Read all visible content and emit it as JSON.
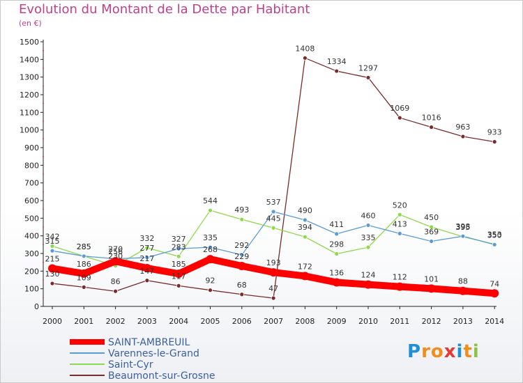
{
  "header": {
    "title": "Evolution du Montant de la Dette par Habitant",
    "subtitle": "(en €)"
  },
  "logo": {
    "text": "Proxiti"
  },
  "chart_data": {
    "type": "line",
    "title": "Evolution du Montant de la Dette par Habitant",
    "subtitle": "(en €)",
    "x": [
      "2000",
      "2001",
      "2002",
      "2003",
      "2004",
      "2005",
      "2006",
      "2007",
      "2008",
      "2009",
      "2010",
      "2011",
      "2012",
      "2013",
      "2014"
    ],
    "y_ticks": [
      0,
      100,
      200,
      300,
      400,
      500,
      600,
      700,
      800,
      900,
      1000,
      1100,
      1200,
      1300,
      1400,
      1500
    ],
    "ylim": [
      0,
      1500
    ],
    "grid": false,
    "legend_position": "bottom-left",
    "series": [
      {
        "name": "SAINT-AMBREUIL",
        "color": "#ff0000",
        "values": [
          215,
          186,
          256,
          217,
          185,
          268,
          229,
          193,
          172,
          136,
          124,
          112,
          101,
          88,
          74
        ]
      },
      {
        "name": "Varennes-le-Grand",
        "color": "#5b9bd5",
        "values": [
          315,
          285,
          270,
          277,
          327,
          335,
          292,
          537,
          490,
          411,
          460,
          413,
          369,
          398,
          350
        ]
      },
      {
        "name": "Saint-Cyr",
        "color": "#8ed94a",
        "values": [
          342,
          285,
          230,
          332,
          283,
          544,
          493,
          445,
          394,
          298,
          335,
          520,
          450,
          395,
          353
        ]
      },
      {
        "name": "Beaumont-sur-Grosne",
        "color": "#7a2a2a",
        "values": [
          130,
          109,
          86,
          147,
          117,
          92,
          68,
          47,
          1408,
          1334,
          1297,
          1069,
          1016,
          963,
          933
        ]
      }
    ],
    "data_labels": [
      [
        215,
        186,
        256,
        217,
        185,
        268,
        229,
        193,
        172,
        136,
        124,
        112,
        101,
        88,
        74
      ],
      [
        315,
        285,
        270,
        277,
        327,
        335,
        292,
        537,
        490,
        411,
        460,
        413,
        369,
        398,
        350
      ],
      [
        342,
        285,
        230,
        332,
        283,
        544,
        493,
        445,
        394,
        298,
        335,
        520,
        450,
        395,
        353
      ],
      [
        130,
        109,
        86,
        147,
        117,
        92,
        68,
        47,
        1408,
        1334,
        1297,
        1069,
        1016,
        963,
        933
      ]
    ]
  }
}
